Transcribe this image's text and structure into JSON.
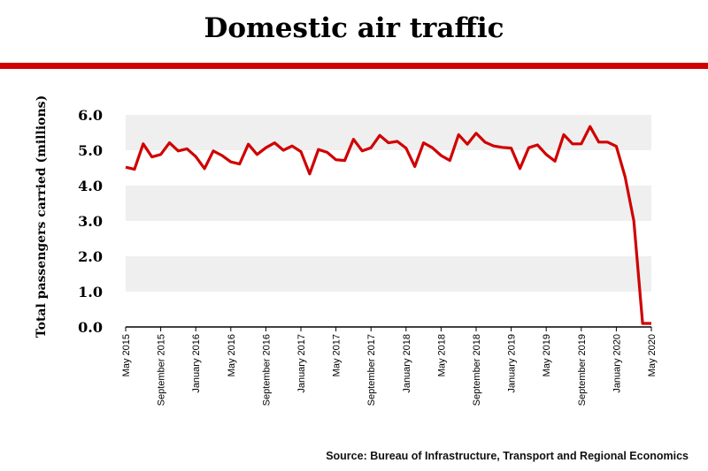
{
  "chart_data": {
    "type": "line",
    "title": "Domestic air traffic",
    "ylabel": "Total passengers carried (millions)",
    "xlabel": "",
    "ylim": [
      0,
      6
    ],
    "yticks": [
      "0.0",
      "1.0",
      "2.0",
      "3.0",
      "4.0",
      "5.0",
      "6.0"
    ],
    "grid": "alternating horizontal bands",
    "line_color": "#d00000",
    "band_color": "#efefef",
    "start": "May 2015",
    "end": "May 2020",
    "x_tick_labels": [
      "May 2015",
      "September 2015",
      "January 2016",
      "May 2016",
      "September 2016",
      "January 2017",
      "May 2017",
      "September 2017",
      "January 2018",
      "May 2018",
      "September 2018",
      "January 2019",
      "May 2019",
      "September 2019",
      "January 2020",
      "May 2020"
    ],
    "values": [
      4.52,
      4.46,
      5.18,
      4.81,
      4.88,
      5.21,
      4.98,
      5.04,
      4.82,
      4.48,
      4.98,
      4.85,
      4.67,
      4.61,
      5.17,
      4.88,
      5.07,
      5.21,
      5.0,
      5.12,
      4.96,
      4.33,
      5.02,
      4.94,
      4.73,
      4.71,
      5.31,
      4.98,
      5.07,
      5.42,
      5.21,
      5.25,
      5.06,
      4.54,
      5.21,
      5.07,
      4.85,
      4.71,
      5.44,
      5.17,
      5.48,
      5.23,
      5.12,
      5.08,
      5.06,
      4.48,
      5.07,
      5.15,
      4.88,
      4.69,
      5.44,
      5.18,
      5.18,
      5.67,
      5.23,
      5.23,
      5.11,
      4.25,
      3.0,
      0.1,
      0.1
    ],
    "source": "Source: Bureau of Infrastructure, Transport and Regional Economics"
  }
}
